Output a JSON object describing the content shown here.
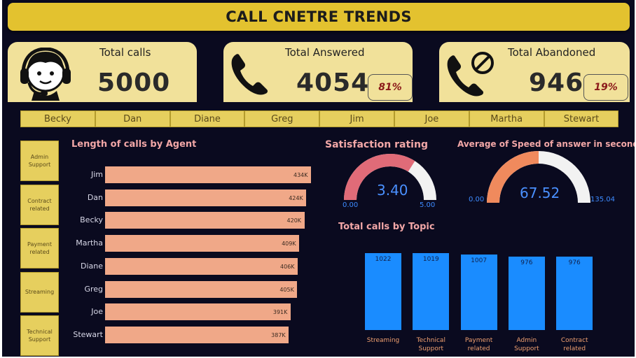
{
  "title": "CALL CNETRE TRENDS",
  "kpis": {
    "total_calls": {
      "label": "Total calls",
      "value": "5000",
      "icon": "headset-agent-icon"
    },
    "total_answered": {
      "label": "Total Answered",
      "value": "4054",
      "pct": "81%",
      "icon": "phone-icon"
    },
    "total_abandoned": {
      "label": "Total Abandoned",
      "value": "946",
      "pct": "19%",
      "icon": "phone-blocked-icon"
    }
  },
  "agents": [
    "Becky",
    "Dan",
    "Diane",
    "Greg",
    "Jim",
    "Joe",
    "Martha",
    "Stewart"
  ],
  "topics": [
    "Admin Support",
    "Contract related",
    "Payment related",
    "Streaming",
    "Technical Support"
  ],
  "colors": {
    "background": "#0a0a1f",
    "title_bar": "#e3c22f",
    "kpi_card": "#f1e19a",
    "slicer": "#e6cf5e",
    "hbar": "#f0a888",
    "vbar": "#1a8cff",
    "gauge_satisfaction": "#e06b78",
    "gauge_speed": "#f08a5d",
    "gauge_track": "#f2f2f2"
  },
  "chart_data": [
    {
      "type": "bar",
      "orientation": "horizontal",
      "title": "Length of calls by Agent",
      "categories": [
        "Jim",
        "Dan",
        "Becky",
        "Martha",
        "Diane",
        "Greg",
        "Joe",
        "Stewart"
      ],
      "values": [
        434000,
        424000,
        420000,
        409000,
        406000,
        405000,
        391000,
        387000
      ],
      "labels": [
        "434K",
        "424K",
        "420K",
        "409K",
        "406K",
        "405K",
        "391K",
        "387K"
      ]
    },
    {
      "type": "gauge",
      "title": "Satisfaction rating",
      "value": 3.4,
      "value_label": "3.40",
      "min": 0,
      "max": 5,
      "min_label": "0.00",
      "max_label": "5.00"
    },
    {
      "type": "gauge",
      "title": "Average of Speed of answer in seconds",
      "value": 67.52,
      "value_label": "67.52",
      "min": 0,
      "max": 135.04,
      "min_label": "0.00",
      "max_label": "135.04"
    },
    {
      "type": "bar",
      "orientation": "vertical",
      "title": "Total calls by Topic",
      "categories": [
        "Streaming",
        "Technical Support",
        "Payment related",
        "Admin Support",
        "Contract related"
      ],
      "values": [
        1022,
        1019,
        1007,
        976,
        976
      ]
    }
  ]
}
